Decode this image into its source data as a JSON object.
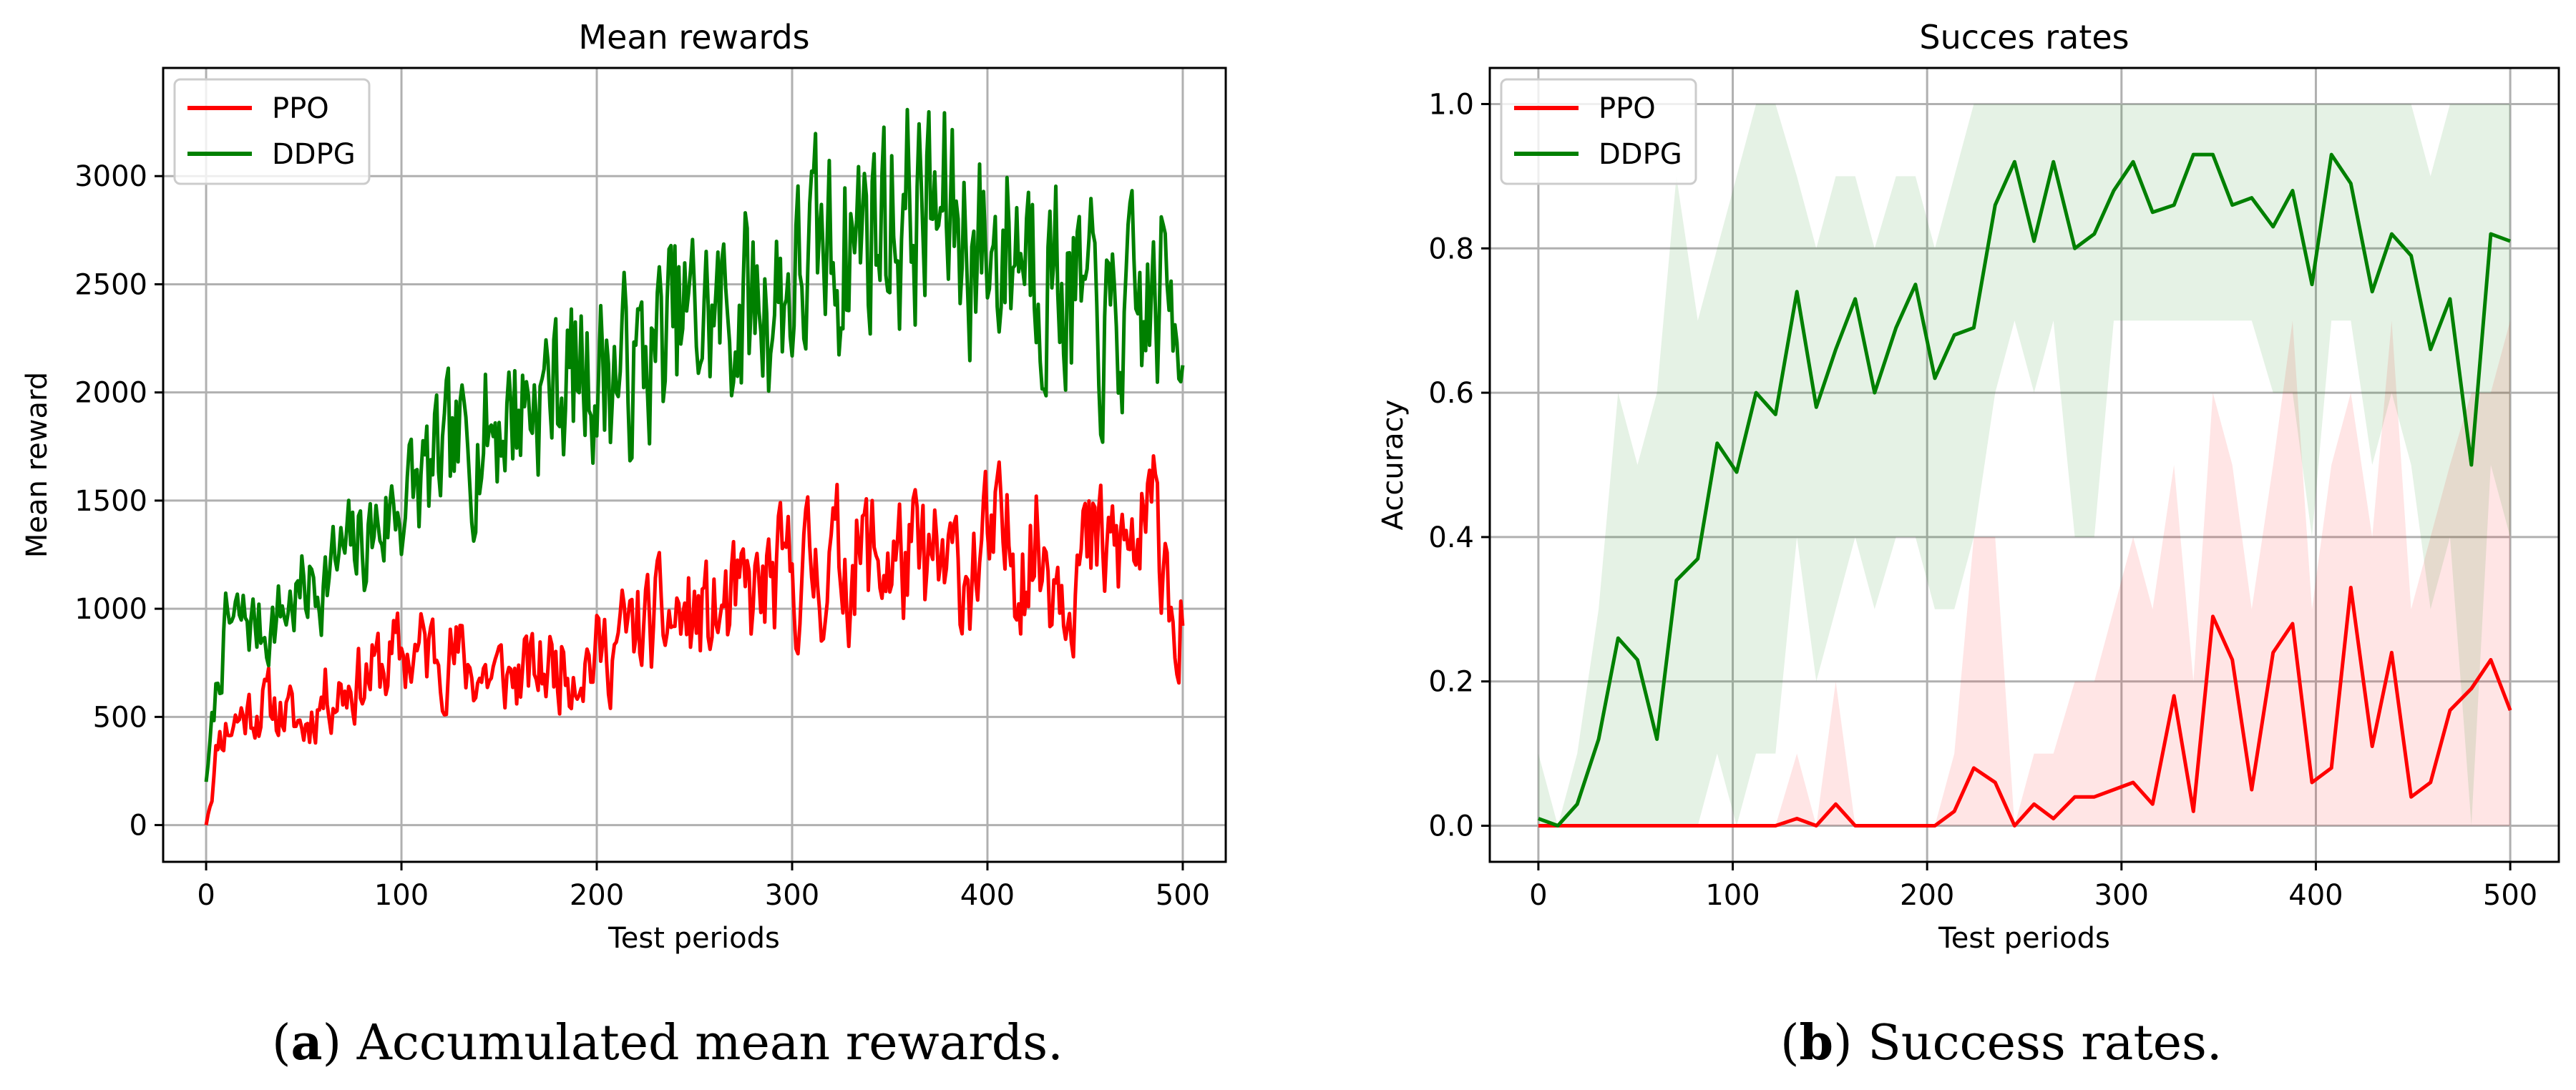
{
  "captions": {
    "a": {
      "label": "a",
      "text": ") Accumulated mean rewards."
    },
    "b": {
      "label": "b",
      "text": ") Success rates."
    }
  },
  "chart_data": [
    {
      "type": "line",
      "title": "Mean rewards",
      "xlabel": "Test periods",
      "ylabel": "Mean reward",
      "xlim": [
        -22,
        522
      ],
      "ylim": [
        -170,
        3500
      ],
      "xticks": [
        0,
        100,
        200,
        300,
        400,
        500
      ],
      "yticks": [
        0,
        500,
        1000,
        1500,
        2000,
        2500,
        3000
      ],
      "grid": true,
      "legend": "top-left",
      "series": [
        {
          "name": "PPO",
          "color": "#ff0000",
          "noise": 0.24,
          "seed": 11,
          "anchors": [
            [
              0,
              0
            ],
            [
              3,
              150
            ],
            [
              6,
              400
            ],
            [
              10,
              450
            ],
            [
              20,
              520
            ],
            [
              30,
              560
            ],
            [
              40,
              520
            ],
            [
              50,
              450
            ],
            [
              60,
              600
            ],
            [
              80,
              680
            ],
            [
              100,
              780
            ],
            [
              120,
              820
            ],
            [
              140,
              700
            ],
            [
              160,
              680
            ],
            [
              180,
              750
            ],
            [
              200,
              780
            ],
            [
              220,
              900
            ],
            [
              240,
              950
            ],
            [
              260,
              950
            ],
            [
              280,
              1050
            ],
            [
              300,
              1150
            ],
            [
              320,
              1200
            ],
            [
              340,
              1250
            ],
            [
              360,
              1200
            ],
            [
              380,
              1150
            ],
            [
              400,
              1250
            ],
            [
              420,
              1300
            ],
            [
              440,
              1200
            ],
            [
              460,
              1250
            ],
            [
              480,
              1300
            ],
            [
              490,
              1400
            ],
            [
              495,
              1100
            ],
            [
              498,
              700
            ],
            [
              500,
              1050
            ]
          ]
        },
        {
          "name": "DDPG",
          "color": "#008000",
          "noise": 0.17,
          "seed": 7,
          "anchors": [
            [
              0,
              200
            ],
            [
              5,
              600
            ],
            [
              10,
              900
            ],
            [
              20,
              950
            ],
            [
              30,
              900
            ],
            [
              40,
              1000
            ],
            [
              60,
              1150
            ],
            [
              80,
              1300
            ],
            [
              100,
              1500
            ],
            [
              120,
              1650
            ],
            [
              140,
              1800
            ],
            [
              160,
              1950
            ],
            [
              180,
              2050
            ],
            [
              200,
              2100
            ],
            [
              220,
              2100
            ],
            [
              240,
              2300
            ],
            [
              260,
              2350
            ],
            [
              280,
              2400
            ],
            [
              300,
              2500
            ],
            [
              320,
              2650
            ],
            [
              340,
              2800
            ],
            [
              360,
              2850
            ],
            [
              380,
              2800
            ],
            [
              400,
              2650
            ],
            [
              420,
              2750
            ],
            [
              440,
              2500
            ],
            [
              460,
              2250
            ],
            [
              480,
              2350
            ],
            [
              500,
              2500
            ]
          ]
        }
      ]
    },
    {
      "type": "line",
      "title": "Succes rates",
      "xlabel": "Test periods",
      "ylabel": "Accuracy",
      "xlim": [
        -25,
        525
      ],
      "ylim": [
        -0.05,
        1.05
      ],
      "xticks": [
        0,
        100,
        200,
        300,
        400,
        500
      ],
      "yticks": [
        0.0,
        0.2,
        0.4,
        0.6,
        0.8,
        1.0
      ],
      "grid": true,
      "legend": "top-left",
      "x": [
        0,
        10,
        20,
        31,
        41,
        51,
        61,
        71,
        82,
        92,
        102,
        112,
        122,
        133,
        143,
        153,
        163,
        173,
        184,
        194,
        204,
        214,
        224,
        235,
        245,
        255,
        265,
        276,
        286,
        296,
        306,
        316,
        327,
        337,
        347,
        357,
        367,
        378,
        388,
        398,
        408,
        418,
        429,
        439,
        449,
        459,
        469,
        480,
        490,
        500
      ],
      "series": [
        {
          "name": "PPO",
          "color": "#ff0000",
          "values": [
            0.0,
            0.0,
            0.0,
            0.0,
            0.0,
            0.0,
            0.0,
            0.0,
            0.0,
            0.0,
            0.0,
            0.0,
            0.0,
            0.01,
            0.0,
            0.03,
            0.0,
            0.0,
            0.0,
            0.0,
            0.0,
            0.02,
            0.08,
            0.06,
            0.0,
            0.03,
            0.01,
            0.04,
            0.04,
            0.05,
            0.06,
            0.03,
            0.18,
            0.02,
            0.29,
            0.23,
            0.05,
            0.24,
            0.28,
            0.06,
            0.08,
            0.33,
            0.11,
            0.24,
            0.04,
            0.06,
            0.16,
            0.19,
            0.23,
            0.16
          ],
          "band_low": [
            0.0,
            0.0,
            0.0,
            0.0,
            0.0,
            0.0,
            0.0,
            0.0,
            0.0,
            0.0,
            0.0,
            0.0,
            0.0,
            0.0,
            0.0,
            0.0,
            0.0,
            0.0,
            0.0,
            0.0,
            0.0,
            0.0,
            0.0,
            0.0,
            0.0,
            0.0,
            0.0,
            0.0,
            0.0,
            0.0,
            0.0,
            0.0,
            0.0,
            0.0,
            0.0,
            0.0,
            0.0,
            0.0,
            0.0,
            0.0,
            0.0,
            0.0,
            0.0,
            0.0,
            0.0,
            0.0,
            0.0,
            0.0,
            0.0,
            0.0
          ],
          "band_high": [
            0.0,
            0.0,
            0.0,
            0.0,
            0.0,
            0.0,
            0.0,
            0.0,
            0.0,
            0.0,
            0.0,
            0.0,
            0.0,
            0.1,
            0.0,
            0.2,
            0.0,
            0.0,
            0.0,
            0.0,
            0.0,
            0.1,
            0.4,
            0.4,
            0.0,
            0.1,
            0.1,
            0.2,
            0.2,
            0.3,
            0.4,
            0.3,
            0.5,
            0.2,
            0.6,
            0.5,
            0.3,
            0.5,
            0.7,
            0.3,
            0.5,
            0.6,
            0.4,
            0.7,
            0.3,
            0.4,
            0.5,
            0.6,
            0.6,
            0.7
          ]
        },
        {
          "name": "DDPG",
          "color": "#008000",
          "values": [
            0.01,
            0.0,
            0.03,
            0.12,
            0.26,
            0.23,
            0.12,
            0.34,
            0.37,
            0.53,
            0.49,
            0.6,
            0.57,
            0.74,
            0.58,
            0.66,
            0.73,
            0.6,
            0.69,
            0.75,
            0.62,
            0.68,
            0.69,
            0.86,
            0.92,
            0.81,
            0.92,
            0.8,
            0.82,
            0.88,
            0.92,
            0.85,
            0.86,
            0.93,
            0.93,
            0.86,
            0.87,
            0.83,
            0.88,
            0.75,
            0.93,
            0.89,
            0.74,
            0.82,
            0.79,
            0.66,
            0.73,
            0.5,
            0.82,
            0.81
          ],
          "band_low": [
            0.0,
            0.0,
            0.0,
            0.0,
            0.0,
            0.0,
            0.0,
            0.0,
            0.0,
            0.1,
            0.0,
            0.1,
            0.1,
            0.4,
            0.2,
            0.3,
            0.4,
            0.3,
            0.4,
            0.4,
            0.3,
            0.3,
            0.4,
            0.6,
            0.7,
            0.6,
            0.7,
            0.4,
            0.4,
            0.7,
            0.7,
            0.7,
            0.7,
            0.7,
            0.7,
            0.7,
            0.7,
            0.6,
            0.6,
            0.4,
            0.7,
            0.7,
            0.5,
            0.6,
            0.5,
            0.3,
            0.4,
            0.0,
            0.5,
            0.4
          ],
          "band_high": [
            0.1,
            0.0,
            0.1,
            0.3,
            0.6,
            0.5,
            0.6,
            0.9,
            0.7,
            0.8,
            0.9,
            1.0,
            1.0,
            0.9,
            0.8,
            0.9,
            0.9,
            0.8,
            0.9,
            0.9,
            0.8,
            0.9,
            1.0,
            1.0,
            1.0,
            1.0,
            1.0,
            1.0,
            1.0,
            1.0,
            1.0,
            1.0,
            1.0,
            1.0,
            1.0,
            1.0,
            1.0,
            1.0,
            1.0,
            1.0,
            1.0,
            1.0,
            1.0,
            1.0,
            1.0,
            0.9,
            1.0,
            1.0,
            1.0,
            1.0
          ]
        }
      ]
    }
  ]
}
